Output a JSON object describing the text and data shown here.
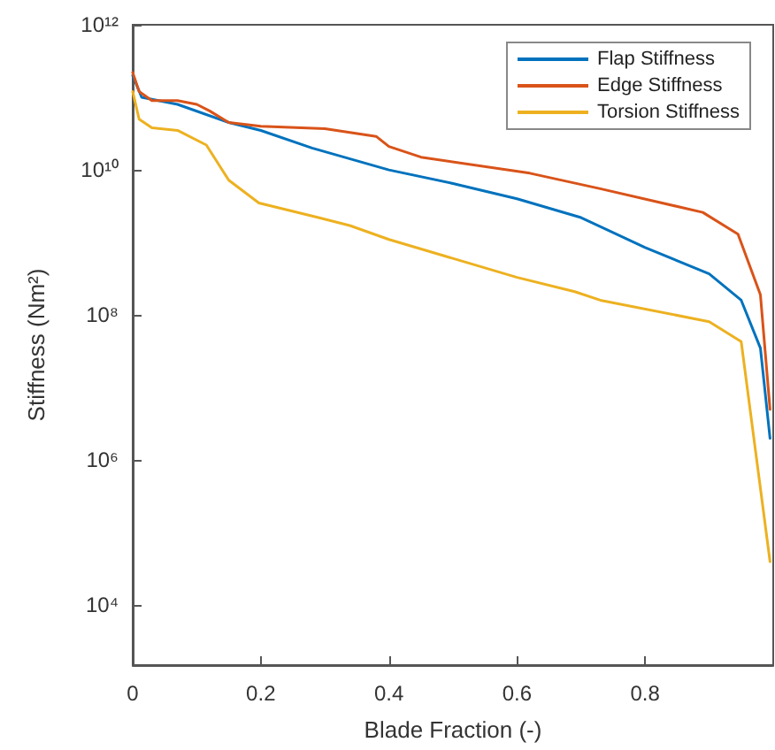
{
  "chart_data": {
    "type": "line",
    "xlabel": "Blade Fraction (-)",
    "ylabel": "Stiffness (Nm²)",
    "log": "y",
    "xlim": [
      0,
      1
    ],
    "xticks": [
      0,
      0.2,
      0.4,
      0.6,
      0.8
    ],
    "ylim": [
      1500,
      1000000000000
    ],
    "yticks": [
      {
        "value": 10000,
        "label": "10⁴"
      },
      {
        "value": 1000000,
        "label": "10⁶"
      },
      {
        "value": 100000000,
        "label": "10⁸"
      },
      {
        "value": 10000000000,
        "label": "10¹⁰"
      },
      {
        "value": 1000000000000,
        "label": "10¹²"
      }
    ],
    "grid": false,
    "legend": "top right",
    "marker": "none",
    "line_style": "solid",
    "series": [
      {
        "name": "Flap Stiffness",
        "color": "#0072bd",
        "x": [
          0,
          0.014,
          0.07,
          0.15,
          0.2,
          0.28,
          0.4,
          0.5,
          0.6,
          0.7,
          0.8,
          0.9,
          0.95,
          0.98,
          0.995
        ],
        "values": [
          200000000000,
          100000000000,
          80000000000,
          45000000000,
          35000000000,
          20000000000,
          10000000000,
          6500000000,
          4000000000,
          2200000000,
          850000000,
          370000000,
          160000000,
          35000000,
          2000000
        ]
      },
      {
        "name": "Edge Stiffness",
        "color": "#d95319",
        "x": [
          0,
          0.01,
          0.03,
          0.07,
          0.1,
          0.12,
          0.15,
          0.2,
          0.3,
          0.38,
          0.4,
          0.45,
          0.62,
          0.73,
          0.89,
          0.945,
          0.98,
          0.995
        ],
        "values": [
          220000000000,
          120000000000,
          90000000000,
          90000000000,
          80000000000,
          65000000000,
          45000000000,
          40000000000,
          37000000000,
          29000000000,
          21000000000,
          15000000000,
          9000000000,
          5500000000,
          2600000000,
          1300000000,
          190000000,
          5000000
        ]
      },
      {
        "name": "Torsion Stiffness",
        "color": "#edb120",
        "x": [
          0,
          0.01,
          0.03,
          0.07,
          0.115,
          0.15,
          0.197,
          0.29,
          0.34,
          0.4,
          0.6,
          0.69,
          0.73,
          0.9,
          0.95,
          0.995
        ],
        "values": [
          120000000000,
          50000000000,
          38000000000,
          35000000000,
          22000000000,
          7200000000,
          3500000000,
          2200000000,
          1700000000,
          1100000000,
          330000000,
          210000000,
          160000000,
          81000000,
          43000000,
          40000
        ]
      }
    ]
  }
}
